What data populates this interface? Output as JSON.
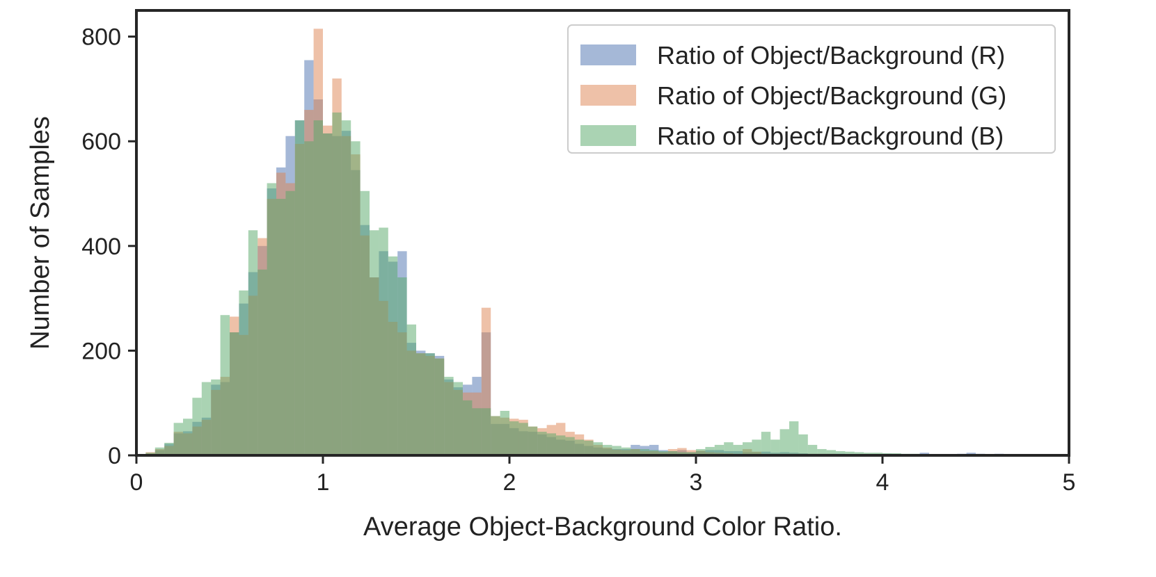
{
  "chart_data": {
    "type": "bar",
    "subtype": "overlaid-histogram",
    "title": "",
    "xlabel": "Average Object-Background Color Ratio.",
    "ylabel": "Number of Samples",
    "xlim": [
      0,
      5
    ],
    "ylim": [
      0,
      850
    ],
    "xticks": [
      "0",
      "1",
      "2",
      "3",
      "4",
      "5"
    ],
    "yticks": [
      "0",
      "200",
      "400",
      "600",
      "800"
    ],
    "grid": false,
    "legend_position": "top-right",
    "bin_start": 0,
    "bin_width": 0.05,
    "opacity": 0.5,
    "series": [
      {
        "name": "Ratio of Object/Background (R)",
        "color": "#4c72b0",
        "values": [
          1,
          3,
          10,
          22,
          42,
          46,
          64,
          72,
          135,
          140,
          235,
          290,
          350,
          400,
          510,
          550,
          610,
          640,
          755,
          680,
          615,
          610,
          620,
          545,
          440,
          340,
          390,
          370,
          390,
          215,
          200,
          195,
          190,
          145,
          130,
          135,
          150,
          235,
          60,
          60,
          52,
          46,
          45,
          40,
          35,
          30,
          28,
          22,
          18,
          15,
          13,
          12,
          12,
          20,
          18,
          20,
          10,
          8,
          10,
          6,
          8,
          10,
          10,
          8,
          8,
          6,
          6,
          7,
          5,
          6,
          5,
          4,
          3,
          3,
          3,
          3,
          2,
          2,
          2,
          2,
          3,
          2,
          2,
          2,
          5,
          2,
          2,
          2,
          3,
          5,
          3,
          2,
          3,
          2,
          2,
          2,
          2,
          2,
          2,
          2
        ]
      },
      {
        "name": "Ratio of Object/Background (G)",
        "color": "#dd8452",
        "values": [
          2,
          6,
          12,
          18,
          45,
          42,
          55,
          68,
          125,
          150,
          265,
          230,
          305,
          415,
          490,
          540,
          520,
          595,
          660,
          815,
          630,
          720,
          610,
          575,
          420,
          340,
          295,
          255,
          235,
          200,
          195,
          190,
          185,
          140,
          125,
          120,
          120,
          282,
          75,
          72,
          70,
          68,
          55,
          52,
          58,
          62,
          45,
          40,
          30,
          20,
          15,
          11,
          10,
          12,
          8,
          8,
          6,
          12,
          14,
          10,
          9,
          6,
          5,
          4,
          3,
          12,
          7,
          3,
          3,
          3,
          3,
          3,
          3,
          3,
          3,
          2,
          2,
          2,
          2,
          2,
          2,
          2,
          2,
          2,
          2,
          2,
          2,
          2,
          2,
          2,
          2,
          2,
          2,
          2,
          2,
          2,
          2,
          2,
          2,
          2
        ]
      },
      {
        "name": "Ratio of Object/Background (B)",
        "color": "#55a868",
        "values": [
          2,
          5,
          15,
          24,
          62,
          70,
          110,
          140,
          145,
          268,
          235,
          315,
          430,
          355,
          520,
          490,
          505,
          640,
          600,
          640,
          615,
          655,
          640,
          600,
          505,
          430,
          435,
          380,
          340,
          250,
          195,
          195,
          185,
          150,
          140,
          105,
          90,
          90,
          75,
          85,
          65,
          62,
          55,
          45,
          42,
          38,
          35,
          30,
          28,
          25,
          20,
          18,
          15,
          12,
          12,
          10,
          8,
          8,
          6,
          6,
          12,
          16,
          20,
          25,
          20,
          25,
          30,
          45,
          30,
          50,
          65,
          40,
          20,
          12,
          10,
          8,
          7,
          6,
          5,
          5,
          4,
          4,
          3,
          3,
          2,
          2,
          2,
          2,
          2,
          2,
          2,
          2,
          2,
          2,
          2,
          2,
          2,
          2,
          2,
          2
        ]
      }
    ]
  }
}
